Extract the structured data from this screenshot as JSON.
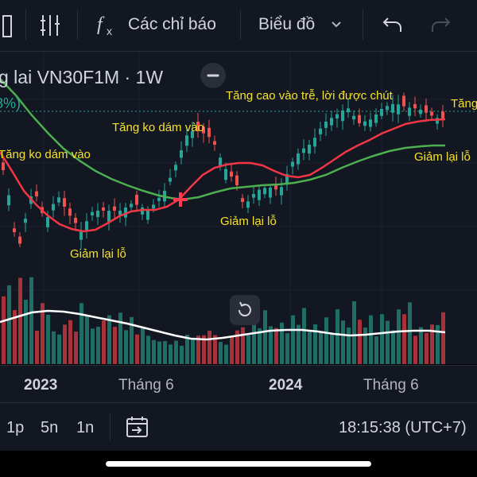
{
  "toolbar": {
    "indicators_label": "Các chỉ báo",
    "chart_type_label": "Biểu đồ"
  },
  "legend": {
    "title": "g lai VN30F1M · 1W",
    "change": "8%)"
  },
  "annotations": [
    "Tăng ko dám vào",
    "Tăng ko dám vào",
    "Giảm lại lỗ",
    "Giảm lại lỗ",
    "Tăng cao vào trễ, lời được chút",
    "Giảm lại lỗ",
    "Tăng"
  ],
  "x_axis": [
    "2023",
    "Tháng 6",
    "2024",
    "Tháng 6"
  ],
  "timeframes": [
    "1p",
    "5n",
    "1n"
  ],
  "clock": "18:15:38 (UTC+7)",
  "colors": {
    "up": "#26a69a",
    "down": "#ef5350",
    "ma_fast": "#f23645",
    "ma_slow": "#4caf50",
    "volume_ma": "#ffffff",
    "annotation": "#f5e22a",
    "background": "#131722"
  }
}
